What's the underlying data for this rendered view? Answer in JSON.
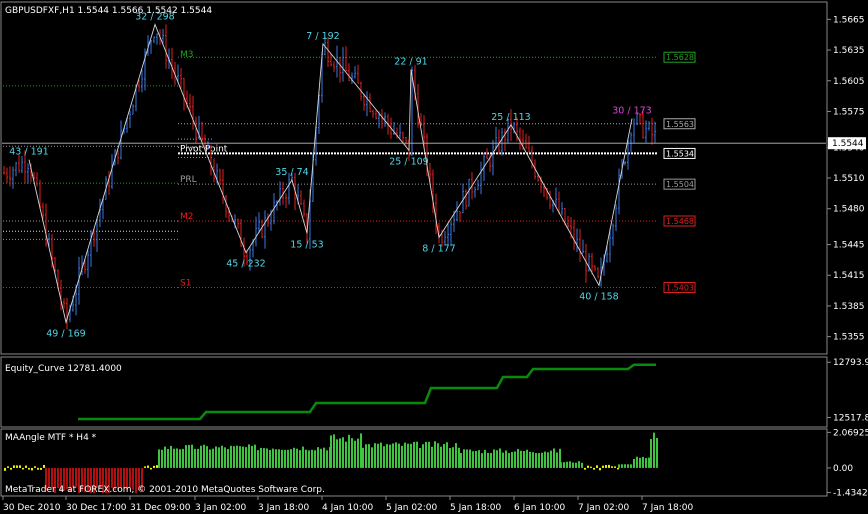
{
  "window": {
    "header": "GBPUSDFXF,H1  1.5544 1.5566 1.5542 1.5544",
    "footer": "MetaTrader 4 at FOREX.com, © 2001-2010 MetaQuotes Software Corp."
  },
  "chart_data": [
    {
      "type": "candlestick-bar",
      "symbol": "GBPUSDFXF",
      "timeframe": "H1",
      "ylim": [
        1.534,
        1.568
      ],
      "y_ticks": [
        "1.5665",
        "1.5635",
        "1.5605",
        "1.5575",
        "1.5540",
        "1.5510",
        "1.5480",
        "1.5445",
        "1.5415",
        "1.5385",
        "1.5355"
      ],
      "current_price": "1.5544",
      "x_ticks": [
        "30 Dec 2010",
        "30 Dec 17:00",
        "31 Dec 09:00",
        "3 Jan 02:00",
        "3 Jan 18:00",
        "4 Jan 10:00",
        "5 Jan 02:00",
        "5 Jan 18:00",
        "6 Jan 10:00",
        "7 Jan 02:00",
        "7 Jan 18:00"
      ],
      "levels": [
        {
          "label": "M3",
          "value": "1.5628",
          "color": "#22a022"
        },
        {
          "label": "",
          "value": "1.5563",
          "color": "#aaaaaa"
        },
        {
          "label": "Pivot Point",
          "value": "1.5534",
          "color": "#ffffff"
        },
        {
          "label": "PRL",
          "value": "1.5504",
          "color": "#999999"
        },
        {
          "label": "M2",
          "value": "1.5468",
          "color": "#dd2020"
        },
        {
          "label": "S1",
          "value": "1.5403",
          "color": "#dd2020"
        }
      ],
      "zigzag": [
        {
          "label": "43 / 191",
          "price": 1.5528
        },
        {
          "label": "49 / 169",
          "price": 1.5369
        },
        {
          "label": "32 / 298",
          "price": 1.566
        },
        {
          "label": "45 / 232",
          "price": 1.5437
        },
        {
          "label": "35 / 74",
          "price": 1.5508
        },
        {
          "label": "15 / 53",
          "price": 1.5456
        },
        {
          "label": "7 / 192",
          "price": 1.5641
        },
        {
          "label": "25 / 109",
          "price": 1.5537
        },
        {
          "label": "22 / 91",
          "price": 1.5616
        },
        {
          "label": "8 / 177",
          "price": 1.5452
        },
        {
          "label": "25 / 113",
          "price": 1.5562
        },
        {
          "label": "40 / 158",
          "price": 1.5405
        },
        {
          "label": "30 / 173",
          "price": 1.5568
        }
      ]
    },
    {
      "type": "line",
      "title": "Equity_Curve 12781.4000",
      "y_ticks": [
        "12793.9",
        "12517.8"
      ],
      "ylim": [
        12480,
        12810
      ]
    },
    {
      "type": "bar",
      "title": "MAAngle MTF * H4 *",
      "y_ticks": [
        "2.06925",
        "0.00",
        "-1.43425"
      ],
      "ylim": [
        -1.52,
        2.15
      ]
    }
  ]
}
